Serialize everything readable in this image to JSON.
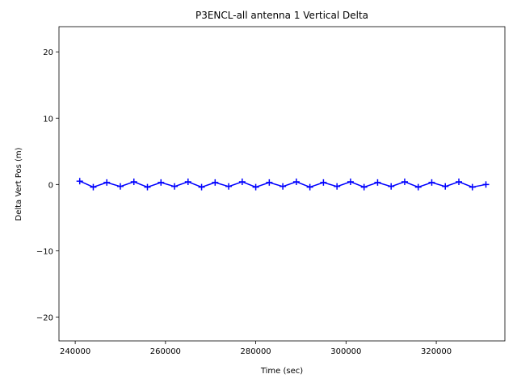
{
  "chart_data": {
    "type": "line",
    "title": "P3ENCL-all antenna 1 Vertical Delta",
    "x_label": "Time (sec)",
    "y_label": "Delta Vert Pos (m)",
    "x": [
      241000,
      244000,
      247000,
      250000,
      253000,
      256000,
      259000,
      262000,
      265000,
      268000,
      271000,
      274000,
      277000,
      280000,
      283000,
      286000,
      289000,
      292000,
      295000,
      298000,
      301000,
      304000,
      307000,
      310000,
      313000,
      316000,
      319000,
      322000,
      325000,
      328000,
      331000
    ],
    "series": [
      {
        "color": "#0000ff",
        "marker": "+",
        "values": [
          0.5,
          -0.4,
          0.3,
          -0.3,
          0.4,
          -0.4,
          0.3,
          -0.3,
          0.4,
          -0.4,
          0.3,
          -0.3,
          0.4,
          -0.4,
          0.3,
          -0.3,
          0.4,
          -0.4,
          0.3,
          -0.3,
          0.4,
          -0.4,
          0.3,
          -0.3,
          0.4,
          -0.4,
          0.3,
          -0.3,
          0.4,
          -0.4,
          0.0
        ]
      }
    ],
    "xlim": [
      236400,
      335200
    ],
    "xticks": [
      240000,
      260000,
      280000,
      300000,
      320000
    ],
    "ylim": [
      -23.6,
      23.8
    ],
    "yticks": [
      {
        "value": -20,
        "label": "−20"
      },
      {
        "value": -10,
        "label": "−10"
      },
      0,
      10,
      20
    ],
    "grid": false
  }
}
